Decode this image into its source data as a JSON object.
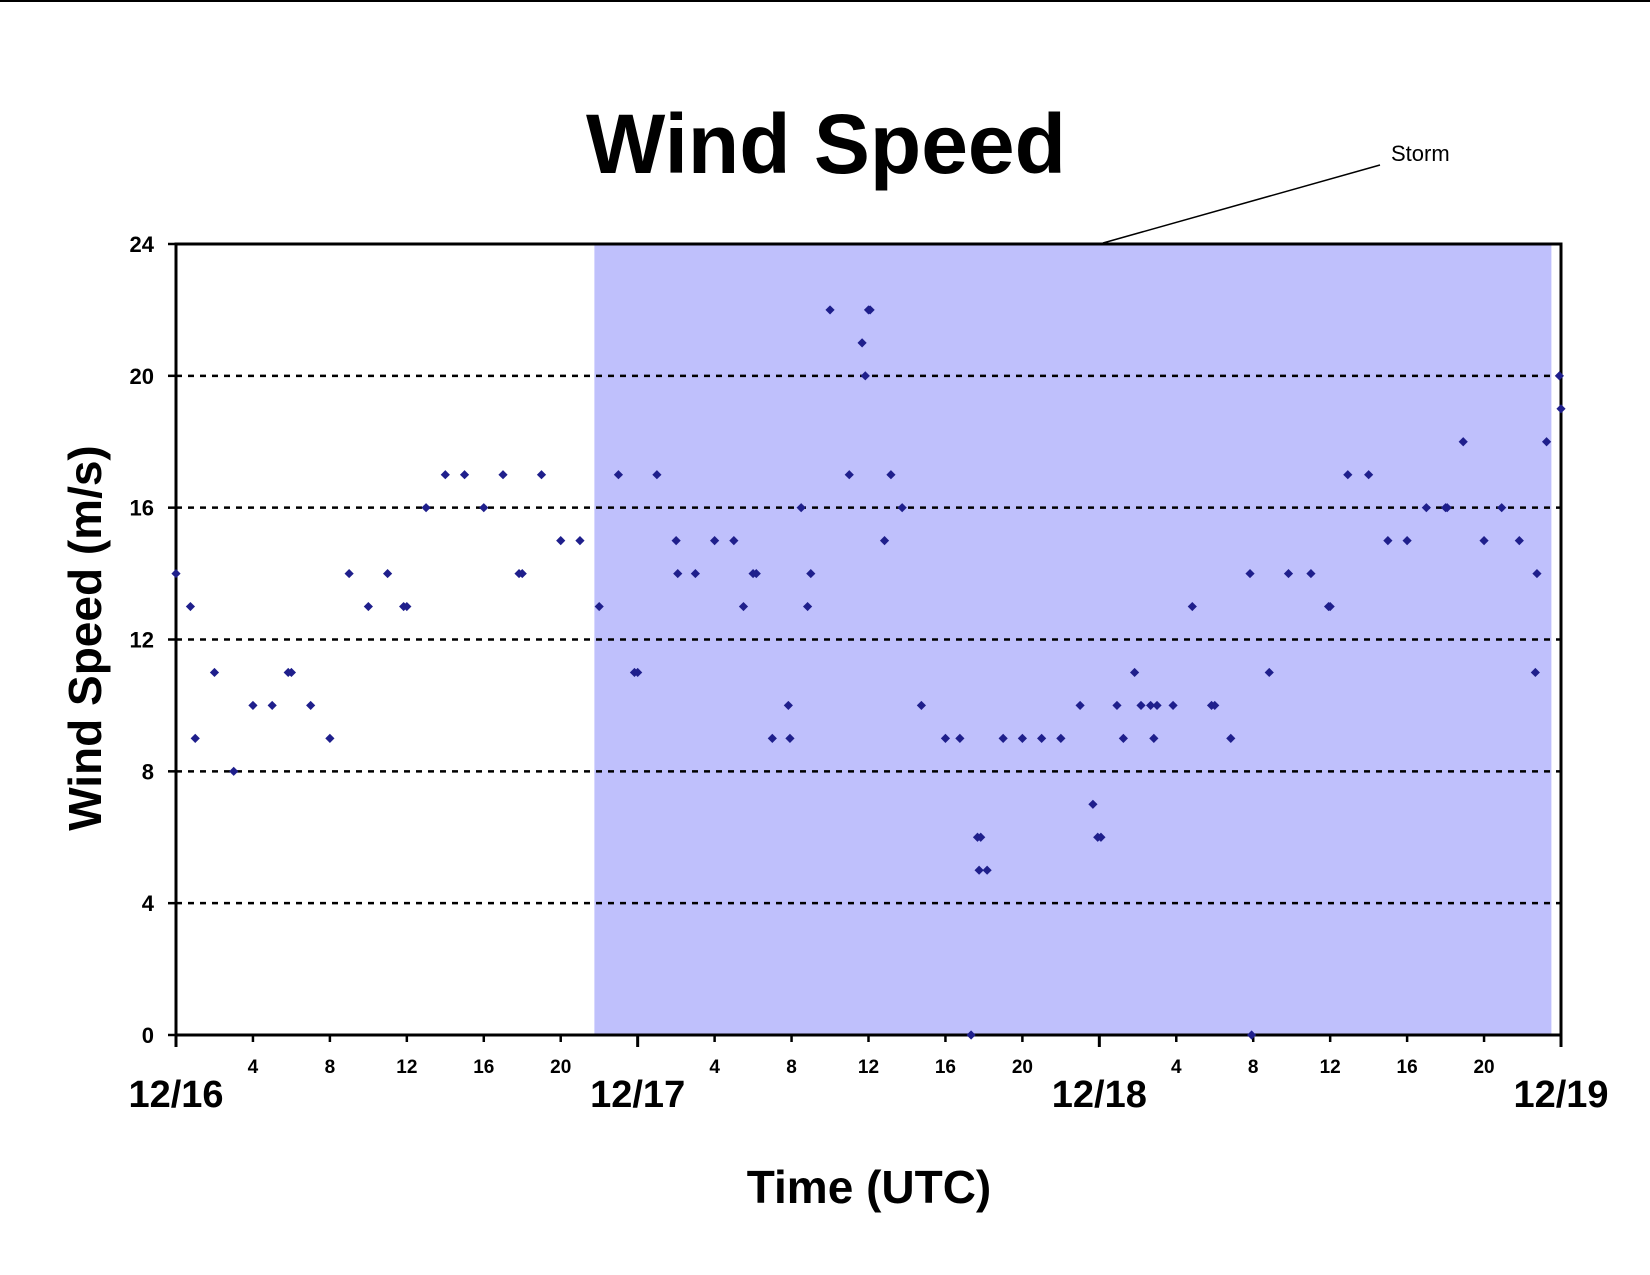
{
  "chart_data": {
    "type": "scatter",
    "title": "Wind Speed",
    "xlabel": "Time (UTC)",
    "ylabel": "Wind Speed (m/s)",
    "ylim": [
      0,
      24
    ],
    "yticks": [
      0,
      4,
      8,
      12,
      16,
      20,
      24
    ],
    "xlim": [
      "12/16 00:00",
      "12/19 00:00"
    ],
    "xticks_hours": [
      {
        "label": "4",
        "day": "12/16",
        "hour": 4
      },
      {
        "label": "8",
        "day": "12/16",
        "hour": 8
      },
      {
        "label": "12",
        "day": "12/16",
        "hour": 12
      },
      {
        "label": "16",
        "day": "12/16",
        "hour": 16
      },
      {
        "label": "20",
        "day": "12/16",
        "hour": 20
      },
      {
        "label": "4",
        "day": "12/17",
        "hour": 4
      },
      {
        "label": "8",
        "day": "12/17",
        "hour": 8
      },
      {
        "label": "12",
        "day": "12/17",
        "hour": 12
      },
      {
        "label": "16",
        "day": "12/17",
        "hour": 16
      },
      {
        "label": "20",
        "day": "12/17",
        "hour": 20
      },
      {
        "label": "4",
        "day": "12/18",
        "hour": 4
      },
      {
        "label": "8",
        "day": "12/18",
        "hour": 8
      },
      {
        "label": "12",
        "day": "12/18",
        "hour": 12
      },
      {
        "label": "16",
        "day": "12/18",
        "hour": 16
      },
      {
        "label": "20",
        "day": "12/18",
        "hour": 20
      }
    ],
    "date_labels": [
      "12/16",
      "12/17",
      "12/18",
      "12/19"
    ],
    "grid": "horizontal dashed",
    "shaded_region": {
      "label": "Storm",
      "start": "12/16 21:45",
      "end": "12/18 23:30",
      "color": "#bfc0fc"
    },
    "marker_color": "#1f1f8c",
    "series": [
      {
        "points": [
          {
            "x": "12/16 00:00",
            "y": 14
          },
          {
            "x": "12/16 00:45",
            "y": 13
          },
          {
            "x": "12/16 01:00",
            "y": 9
          },
          {
            "x": "12/16 02:00",
            "y": 11
          },
          {
            "x": "12/16 03:00",
            "y": 8
          },
          {
            "x": "12/16 04:00",
            "y": 10
          },
          {
            "x": "12/16 05:00",
            "y": 10
          },
          {
            "x": "12/16 05:50",
            "y": 11
          },
          {
            "x": "12/16 06:00",
            "y": 11
          },
          {
            "x": "12/16 07:00",
            "y": 10
          },
          {
            "x": "12/16 08:00",
            "y": 9
          },
          {
            "x": "12/16 09:00",
            "y": 14
          },
          {
            "x": "12/16 10:00",
            "y": 13
          },
          {
            "x": "12/16 11:00",
            "y": 14
          },
          {
            "x": "12/16 11:50",
            "y": 13
          },
          {
            "x": "12/16 12:00",
            "y": 13
          },
          {
            "x": "12/16 13:00",
            "y": 16
          },
          {
            "x": "12/16 14:00",
            "y": 17
          },
          {
            "x": "12/16 15:00",
            "y": 17
          },
          {
            "x": "12/16 16:00",
            "y": 16
          },
          {
            "x": "12/16 17:00",
            "y": 17
          },
          {
            "x": "12/16 17:50",
            "y": 14
          },
          {
            "x": "12/16 18:00",
            "y": 14
          },
          {
            "x": "12/16 19:00",
            "y": 17
          },
          {
            "x": "12/16 20:00",
            "y": 15
          },
          {
            "x": "12/16 21:00",
            "y": 15
          },
          {
            "x": "12/16 22:00",
            "y": 13
          },
          {
            "x": "12/16 23:00",
            "y": 17
          },
          {
            "x": "12/16 23:50",
            "y": 11
          },
          {
            "x": "12/17 00:00",
            "y": 11
          },
          {
            "x": "12/17 01:00",
            "y": 17
          },
          {
            "x": "12/17 02:00",
            "y": 15
          },
          {
            "x": "12/17 02:05",
            "y": 14
          },
          {
            "x": "12/17 03:00",
            "y": 14
          },
          {
            "x": "12/17 04:00",
            "y": 15
          },
          {
            "x": "12/17 05:00",
            "y": 15
          },
          {
            "x": "12/17 05:30",
            "y": 13
          },
          {
            "x": "12/17 06:00",
            "y": 14
          },
          {
            "x": "12/17 06:10",
            "y": 14
          },
          {
            "x": "12/17 07:00",
            "y": 9
          },
          {
            "x": "12/17 07:50",
            "y": 10
          },
          {
            "x": "12/17 07:55",
            "y": 9
          },
          {
            "x": "12/17 08:30",
            "y": 16
          },
          {
            "x": "12/17 08:50",
            "y": 13
          },
          {
            "x": "12/17 09:00",
            "y": 14
          },
          {
            "x": "12/17 10:00",
            "y": 22
          },
          {
            "x": "12/17 11:00",
            "y": 17
          },
          {
            "x": "12/17 11:40",
            "y": 21
          },
          {
            "x": "12/17 11:50",
            "y": 20
          },
          {
            "x": "12/17 12:00",
            "y": 22
          },
          {
            "x": "12/17 12:05",
            "y": 22
          },
          {
            "x": "12/17 12:50",
            "y": 15
          },
          {
            "x": "12/17 13:10",
            "y": 17
          },
          {
            "x": "12/17 13:45",
            "y": 16
          },
          {
            "x": "12/17 14:45",
            "y": 10
          },
          {
            "x": "12/17 16:00",
            "y": 9
          },
          {
            "x": "12/17 16:45",
            "y": 9
          },
          {
            "x": "12/17 17:20",
            "y": 0
          },
          {
            "x": "12/17 17:40",
            "y": 6
          },
          {
            "x": "12/17 17:45",
            "y": 5
          },
          {
            "x": "12/17 17:50",
            "y": 6
          },
          {
            "x": "12/17 18:10",
            "y": 5
          },
          {
            "x": "12/17 19:00",
            "y": 9
          },
          {
            "x": "12/17 20:00",
            "y": 9
          },
          {
            "x": "12/17 21:00",
            "y": 9
          },
          {
            "x": "12/17 22:00",
            "y": 9
          },
          {
            "x": "12/17 23:00",
            "y": 10
          },
          {
            "x": "12/17 23:40",
            "y": 7
          },
          {
            "x": "12/17 23:55",
            "y": 6
          },
          {
            "x": "12/18 00:05",
            "y": 6
          },
          {
            "x": "12/18 00:55",
            "y": 10
          },
          {
            "x": "12/18 01:15",
            "y": 9
          },
          {
            "x": "12/18 01:50",
            "y": 11
          },
          {
            "x": "12/18 02:10",
            "y": 10
          },
          {
            "x": "12/18 02:40",
            "y": 10
          },
          {
            "x": "12/18 02:50",
            "y": 9
          },
          {
            "x": "12/18 03:00",
            "y": 10
          },
          {
            "x": "12/18 03:50",
            "y": 10
          },
          {
            "x": "12/18 04:50",
            "y": 13
          },
          {
            "x": "12/18 05:50",
            "y": 10
          },
          {
            "x": "12/18 06:00",
            "y": 10
          },
          {
            "x": "12/18 06:50",
            "y": 9
          },
          {
            "x": "12/18 07:50",
            "y": 14
          },
          {
            "x": "12/18 07:55",
            "y": 0
          },
          {
            "x": "12/18 08:50",
            "y": 11
          },
          {
            "x": "12/18 09:50",
            "y": 14
          },
          {
            "x": "12/18 11:00",
            "y": 14
          },
          {
            "x": "12/18 11:55",
            "y": 13
          },
          {
            "x": "12/18 12:00",
            "y": 13
          },
          {
            "x": "12/18 12:55",
            "y": 17
          },
          {
            "x": "12/18 14:00",
            "y": 17
          },
          {
            "x": "12/18 15:00",
            "y": 15
          },
          {
            "x": "12/18 16:00",
            "y": 15
          },
          {
            "x": "12/18 17:00",
            "y": 16
          },
          {
            "x": "12/18 18:00",
            "y": 16
          },
          {
            "x": "12/18 18:05",
            "y": 16
          },
          {
            "x": "12/18 18:55",
            "y": 18
          },
          {
            "x": "12/18 20:00",
            "y": 15
          },
          {
            "x": "12/18 20:55",
            "y": 16
          },
          {
            "x": "12/18 21:50",
            "y": 15
          },
          {
            "x": "12/18 22:40",
            "y": 11
          },
          {
            "x": "12/18 22:45",
            "y": 14
          },
          {
            "x": "12/18 23:15",
            "y": 18
          },
          {
            "x": "12/18 23:55",
            "y": 20
          },
          {
            "x": "12/19 00:00",
            "y": 19
          }
        ]
      }
    ]
  }
}
